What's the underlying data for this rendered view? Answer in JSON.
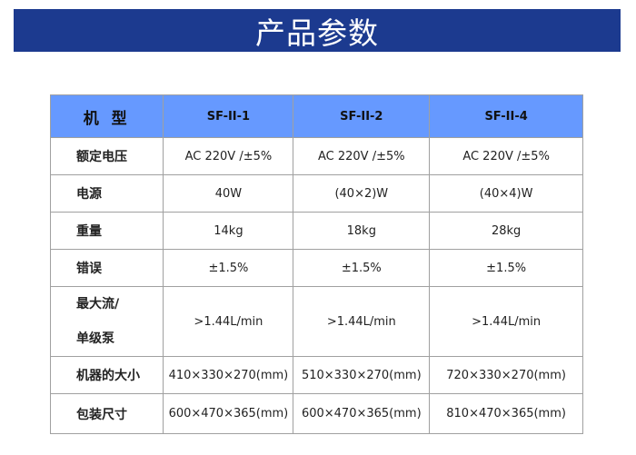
{
  "title": "产品参数",
  "colors": {
    "banner": "#1c3a8f",
    "header": "#6699ff"
  },
  "table": {
    "headers": [
      "机 型",
      "SF-II-1",
      "SF-II-2",
      "SF-II-4"
    ],
    "rows": [
      {
        "label": "额定电压",
        "values": [
          "AC 220V /±5%",
          "AC 220V /±5%",
          "AC 220V /±5%"
        ]
      },
      {
        "label": "电源",
        "values": [
          "40W",
          "(40×2)W",
          "(40×4)W"
        ]
      },
      {
        "label": "重量",
        "values": [
          "14kg",
          "18kg",
          "28kg"
        ]
      },
      {
        "label": "错误",
        "values": [
          "±1.5%",
          "±1.5%",
          "±1.5%"
        ]
      },
      {
        "label": "最大流/",
        "label2": "单级泵",
        "values": [
          ">1.44L/min",
          ">1.44L/min",
          ">1.44L/min"
        ]
      },
      {
        "label": "机器的大小",
        "values": [
          "410×330×270(mm)",
          "510×330×270(mm)",
          "720×330×270(mm)"
        ]
      },
      {
        "label": "包装尺寸",
        "values": [
          "600×470×365(mm)",
          "600×470×365(mm)",
          "810×470×365(mm)"
        ]
      }
    ]
  }
}
